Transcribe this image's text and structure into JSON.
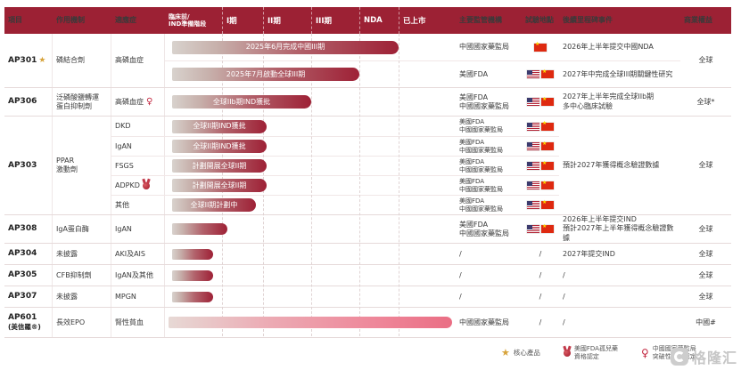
{
  "colors": {
    "header_bg": "#9c2134",
    "bar_dark": "#9e2136",
    "bar_light_end": "#d8d2cd",
    "bar_marketed": "#ea6e84",
    "star_gold": "#d7a33b",
    "flag_cn": "#de2910"
  },
  "header": {
    "project": "項目",
    "mechanism": "作用機制",
    "indication": "適應症",
    "preclinical_l1": "臨床前/",
    "preclinical_l2": "IND準備階段",
    "phase1": "I期",
    "phase2": "II期",
    "phase3": "III期",
    "nda": "NDA",
    "marketed": "已上市",
    "regulators": "主要監管機構",
    "sites": "試驗地點",
    "milestones": "後續里程碑事件",
    "rights": "商業權益"
  },
  "icons": {
    "star": "★",
    "breakthrough": "♀",
    "orphan_medal": "medal-shape"
  },
  "rows": {
    "ap301": {
      "project": "AP301",
      "mechanism": "磷結合劑",
      "indication": "高磷血症",
      "bar1": "2025年6月完成中國III期",
      "bar2": "2025年7月啟動全球III期",
      "sub1": {
        "regulator": "中國國家藥監局",
        "sites": [
          "cn"
        ],
        "milestone": "2026年上半年提交中國NDA"
      },
      "sub2": {
        "regulator": "美國FDA",
        "sites": [
          "us",
          "cn"
        ],
        "milestone": "2027年中完成全球III期關鍵性研究"
      },
      "rights": "全球"
    },
    "ap306": {
      "project": "AP306",
      "mechanism_l1": "泛磷酸鹽轉運",
      "mechanism_l2": "蛋白抑制劑",
      "indication": "高磷血症",
      "bar": "全球IIb期IND獲批",
      "regulator_l1": "美國FDA",
      "regulator_l2": "中國國家藥監局",
      "sites": [
        "us",
        "cn"
      ],
      "milestone_l1": "2027年上半年完成全球IIb期",
      "milestone_l2": "多中心臨床試驗",
      "rights": "全球*"
    },
    "ap303": {
      "project": "AP303",
      "mechanism_l1": "PPAR",
      "mechanism_l2": "激動劑",
      "sub": [
        {
          "indication": "DKD",
          "bar": "全球II期IND獲批",
          "regulator_l1": "美國FDA",
          "regulator_l2": "中國國家藥監局",
          "sites": [
            "us",
            "cn"
          ]
        },
        {
          "indication": "IgAN",
          "bar": "全球II期IND獲批",
          "regulator_l1": "美國FDA",
          "regulator_l2": "中國國家藥監局",
          "sites": [
            "us",
            "cn"
          ]
        },
        {
          "indication": "FSGS",
          "bar": "計劃開展全球II期",
          "regulator_l1": "美國FDA",
          "regulator_l2": "中國國家藥監局",
          "sites": [
            "us",
            "cn"
          ]
        },
        {
          "indication": "ADPKD",
          "orphan": true,
          "bar": "計劃開展全球II期",
          "regulator_l1": "美國FDA",
          "regulator_l2": "中國國家藥監局",
          "sites": [
            "us",
            "cn"
          ]
        },
        {
          "indication": "其他",
          "bar": "全球II期計劃中",
          "regulator_l1": "美國FDA",
          "regulator_l2": "中國國家藥監局",
          "sites": [
            "us",
            "cn"
          ]
        }
      ],
      "milestone": "預計2027年獲得概念驗證數據",
      "rights": "全球"
    },
    "ap308": {
      "project": "AP308",
      "mechanism": "IgA蛋白酶",
      "indication": "IgAN",
      "regulator_l1": "美國FDA",
      "regulator_l2": "中國國家藥監局",
      "sites": [
        "us",
        "cn"
      ],
      "milestone_l1": "2026年上半年提交IND",
      "milestone_l2": "預計2027年上半年獲得概念驗證數據",
      "rights": "全球"
    },
    "ap304": {
      "project": "AP304",
      "mechanism": "未披露",
      "indication": "AKI及AIS",
      "regulator": "/",
      "sites_text": "/",
      "milestone": "2027年提交IND",
      "rights": "全球"
    },
    "ap305": {
      "project": "AP305",
      "mechanism": "CFB抑制劑",
      "indication": "IgAN及其他",
      "regulator": "/",
      "sites_text": "/",
      "milestone": "/",
      "rights": "全球"
    },
    "ap307": {
      "project": "AP307",
      "mechanism": "未披露",
      "indication": "MPGN",
      "regulator": "/",
      "sites_text": "/",
      "milestone": "/",
      "rights": "全球"
    },
    "ap601": {
      "project_l1": "AP601",
      "project_l2": "(美信羅®)",
      "mechanism": "長效EPO",
      "indication": "腎性貧血",
      "regulator": "中國國家藥監局",
      "sites_text": "/",
      "milestone": "/",
      "rights": "中國#"
    }
  },
  "legend": {
    "core": "核心產品",
    "orphan_l1": "美國FDA孤兒藥",
    "orphan_l2": "資格認定",
    "btd_l1": "中國國家藥監局",
    "btd_l2": "突破性治療認定"
  },
  "watermark": "格隆汇",
  "chart_data": {
    "type": "table",
    "stage_columns": [
      "臨床前/IND準備階段",
      "I期",
      "II期",
      "III期",
      "NDA",
      "已上市"
    ],
    "programs": [
      {
        "project": "AP301",
        "core_product": true,
        "mechanism": "磷結合劑",
        "indications": [
          "高磷血症"
        ],
        "bars": [
          {
            "label": "2025年6月完成中國III期",
            "reaches": "NDA"
          },
          {
            "label": "2025年7月啟動全球III期",
            "reaches": "III期"
          }
        ],
        "regulators": [
          "中國國家藥監局",
          "美國FDA"
        ],
        "trial_sites": [
          "中國",
          "美國+中國"
        ],
        "milestones": [
          "2026年上半年提交中國NDA",
          "2027年中完成全球III期關鍵性研究"
        ],
        "rights": "全球"
      },
      {
        "project": "AP306",
        "mechanism": "泛磷酸鹽轉運蛋白抑制劑",
        "indications": [
          "高磷血症"
        ],
        "breakthrough_designation": true,
        "bars": [
          {
            "label": "全球IIb期IND獲批",
            "reaches": "II期"
          }
        ],
        "regulators": [
          "美國FDA",
          "中國國家藥監局"
        ],
        "trial_sites": [
          "美國+中國"
        ],
        "milestones": [
          "2027年上半年完成全球IIb期多中心臨床試驗"
        ],
        "rights": "全球*"
      },
      {
        "project": "AP303",
        "mechanism": "PPAR激動劑",
        "indications": [
          "DKD",
          "IgAN",
          "FSGS",
          "ADPKD",
          "其他"
        ],
        "orphan_designation_on": "ADPKD",
        "bars": [
          {
            "label": "全球II期IND獲批",
            "reaches": "I期"
          },
          {
            "label": "全球II期IND獲批",
            "reaches": "I期"
          },
          {
            "label": "計劃開展全球II期",
            "reaches": "I期"
          },
          {
            "label": "計劃開展全球II期",
            "reaches": "I期"
          },
          {
            "label": "全球II期計劃中",
            "reaches": "I期"
          }
        ],
        "regulators": [
          "美國FDA",
          "中國國家藥監局"
        ],
        "trial_sites": [
          "美國+中國"
        ],
        "milestones": [
          "預計2027年獲得概念驗證數據"
        ],
        "rights": "全球"
      },
      {
        "project": "AP308",
        "mechanism": "IgA蛋白酶",
        "indications": [
          "IgAN"
        ],
        "bars": [
          {
            "label": "",
            "reaches": "臨床前/IND準備階段"
          }
        ],
        "regulators": [
          "美國FDA",
          "中國國家藥監局"
        ],
        "trial_sites": [
          "美國+中國"
        ],
        "milestones": [
          "2026年上半年提交IND",
          "預計2027年上半年獲得概念驗證數據"
        ],
        "rights": "全球"
      },
      {
        "project": "AP304",
        "mechanism": "未披露",
        "indications": [
          "AKI及AIS"
        ],
        "bars": [
          {
            "label": "",
            "reaches": "臨床前/IND準備階段"
          }
        ],
        "regulators": [],
        "trial_sites": [],
        "milestones": [
          "2027年提交IND"
        ],
        "rights": "全球"
      },
      {
        "project": "AP305",
        "mechanism": "CFB抑制劑",
        "indications": [
          "IgAN及其他"
        ],
        "bars": [
          {
            "label": "",
            "reaches": "臨床前/IND準備階段"
          }
        ],
        "regulators": [],
        "trial_sites": [],
        "milestones": [],
        "rights": "全球"
      },
      {
        "project": "AP307",
        "mechanism": "未披露",
        "indications": [
          "MPGN"
        ],
        "bars": [
          {
            "label": "",
            "reaches": "臨床前/IND準備階段"
          }
        ],
        "regulators": [],
        "trial_sites": [],
        "milestones": [],
        "rights": "全球"
      },
      {
        "project": "AP601(美信羅®)",
        "mechanism": "長效EPO",
        "indications": [
          "腎性貧血"
        ],
        "bars": [
          {
            "label": "",
            "reaches": "已上市"
          }
        ],
        "regulators": [
          "中國國家藥監局"
        ],
        "trial_sites": [],
        "milestones": [],
        "rights": "中國#"
      }
    ]
  }
}
